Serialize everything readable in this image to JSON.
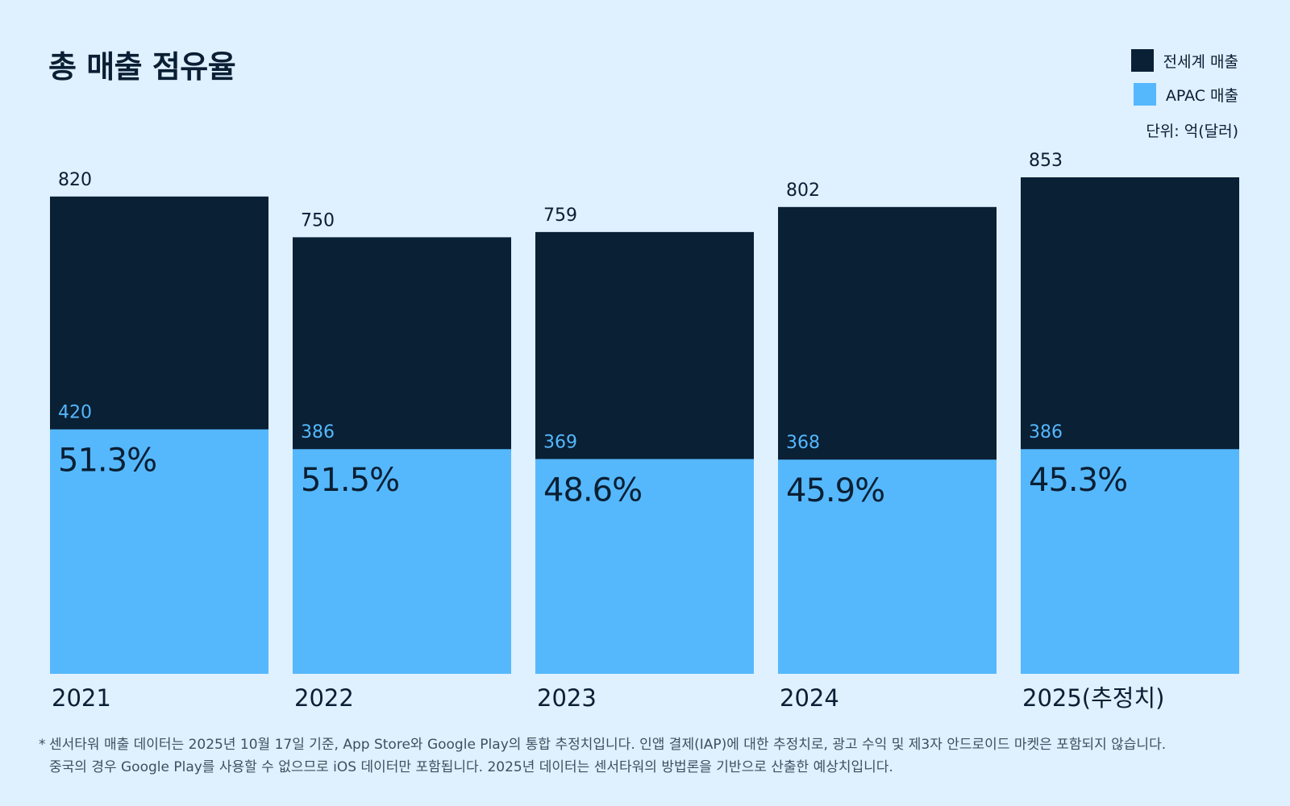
{
  "title": "총 매출 점유율",
  "legend": {
    "worldwide": "전세계 매출",
    "apac": "APAC 매출"
  },
  "unit": "단위: 억(달러)",
  "colors": {
    "worldwide": "#0a2035",
    "apac": "#55b8fd",
    "apac_label": "#55b8fd",
    "text": "#0a1f33",
    "background": "#dff0ff"
  },
  "chart_data": {
    "type": "bar",
    "stacked": "overlay",
    "categories": [
      "2021",
      "2022",
      "2023",
      "2024",
      "2025(추정치)"
    ],
    "series": [
      {
        "name": "전세계 매출",
        "values": [
          820,
          750,
          759,
          802,
          853
        ]
      },
      {
        "name": "APAC 매출",
        "values": [
          420,
          386,
          369,
          368,
          386
        ]
      }
    ],
    "share_labels": [
      "51.3%",
      "51.5%",
      "48.6%",
      "45.9%",
      "45.3%"
    ],
    "ylim": [
      0,
      853
    ],
    "grid": false,
    "legend_position": "top-right"
  },
  "footnote": {
    "star": "*",
    "text": "센서타워 매출 데이터는 2025년 10월 17일 기준, App Store와 Google Play의 통합 추정치입니다. 인앱 결제(IAP)에 대한 추정치로, 광고 수익 및 제3자 안드로이드 마켓은 포함되지 않습니다.\n중국의 경우 Google Play를 사용할 수 없으므로 iOS 데이터만 포함됩니다. 2025년 데이터는 센서타워의 방법론을 기반으로 산출한 예상치입니다."
  }
}
